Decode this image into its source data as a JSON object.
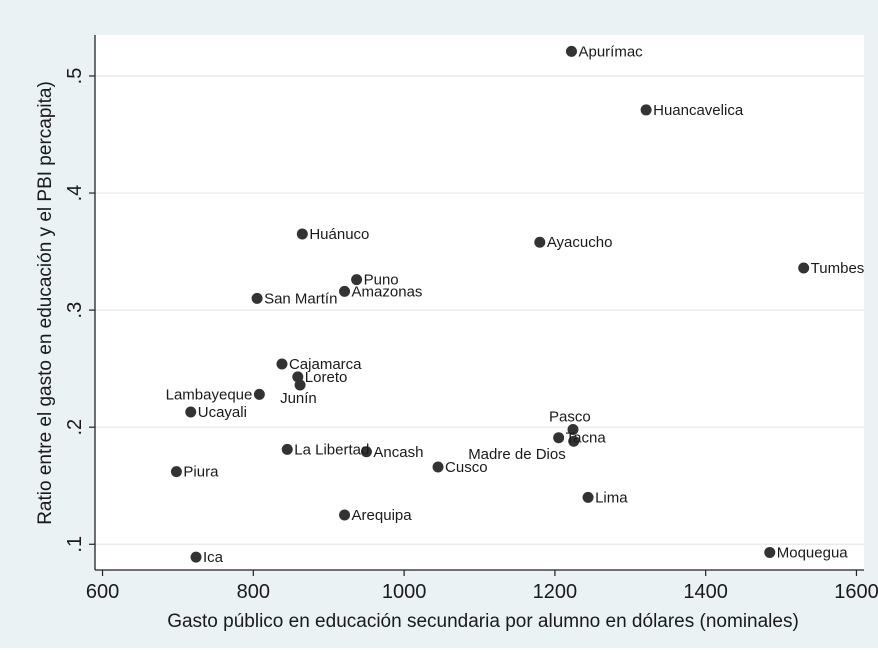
{
  "chart_data": {
    "type": "scatter",
    "xlabel": "Gasto público en educación secundaria por alumno en dólares (nominales)",
    "ylabel": "Ratio entre el gasto en educación y el PBI percapita)",
    "xlim": [
      590,
      1610
    ],
    "ylim": [
      0.078,
      0.535
    ],
    "x_ticks": [
      600,
      800,
      1000,
      1200,
      1400,
      1600
    ],
    "y_ticks": [
      0.1,
      0.2,
      0.3,
      0.4,
      0.5
    ],
    "x_tick_labels": [
      "600",
      "800",
      "1000",
      "1200",
      "1400",
      "1600"
    ],
    "y_tick_labels": [
      ".1",
      ".2",
      ".3",
      ".4",
      ".5"
    ],
    "grid": "horizontal",
    "marker_color": "#333333",
    "background": "#eaf2f3",
    "plot_background": "#ffffff",
    "points": [
      {
        "name": "Apurímac",
        "x": 1222,
        "y": 0.521
      },
      {
        "name": "Huancavelica",
        "x": 1321,
        "y": 0.471
      },
      {
        "name": "Huánuco",
        "x": 865,
        "y": 0.365
      },
      {
        "name": "Ayacucho",
        "x": 1180,
        "y": 0.358
      },
      {
        "name": "Tumbes",
        "x": 1530,
        "y": 0.336
      },
      {
        "name": "Puno",
        "x": 937,
        "y": 0.326
      },
      {
        "name": "Amazonas",
        "x": 921,
        "y": 0.316
      },
      {
        "name": "San Martín",
        "x": 805,
        "y": 0.31
      },
      {
        "name": "Cajamarca",
        "x": 838,
        "y": 0.254
      },
      {
        "name": "Loreto",
        "x": 859,
        "y": 0.243
      },
      {
        "name": "Junín",
        "x": 862,
        "y": 0.236
      },
      {
        "name": "Lambayeque",
        "x": 808,
        "y": 0.228
      },
      {
        "name": "Ucayali",
        "x": 717,
        "y": 0.213
      },
      {
        "name": "Pasco",
        "x": 1224,
        "y": 0.198
      },
      {
        "name": "Tacna",
        "x": 1205,
        "y": 0.191
      },
      {
        "name": "Madre de Dios",
        "x": 1225,
        "y": 0.188
      },
      {
        "name": "La Libertad",
        "x": 845,
        "y": 0.181
      },
      {
        "name": "Ancash",
        "x": 950,
        "y": 0.179
      },
      {
        "name": "Cusco",
        "x": 1045,
        "y": 0.166
      },
      {
        "name": "Piura",
        "x": 698,
        "y": 0.162
      },
      {
        "name": "Lima",
        "x": 1244,
        "y": 0.14
      },
      {
        "name": "Arequipa",
        "x": 921,
        "y": 0.125
      },
      {
        "name": "Ica",
        "x": 724,
        "y": 0.089
      },
      {
        "name": "Moquegua",
        "x": 1485,
        "y": 0.093
      }
    ]
  }
}
